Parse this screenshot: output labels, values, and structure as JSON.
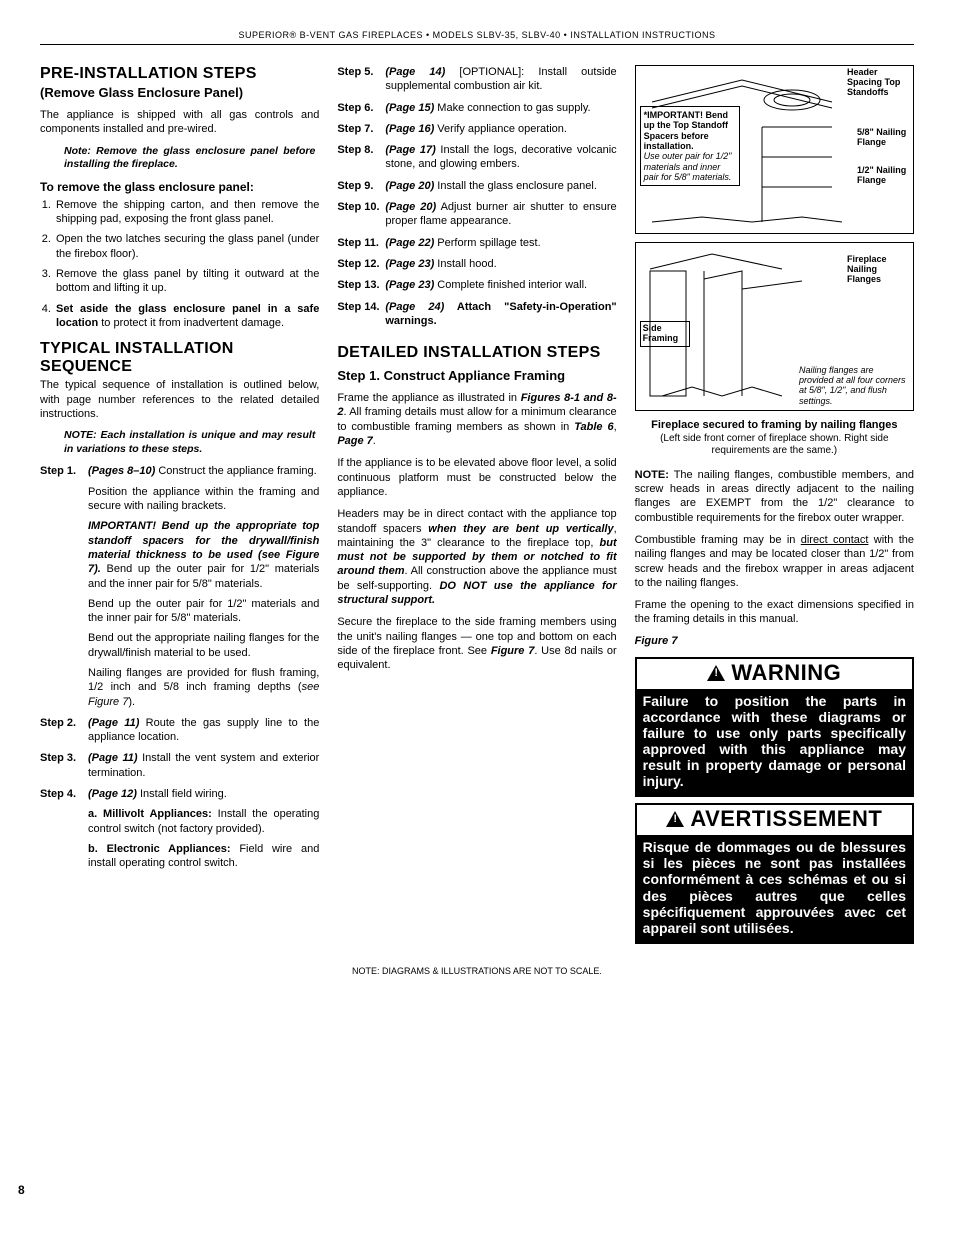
{
  "header": "SUPERIOR® B-VENT GAS FIREPLACES  •  MODELS SLBV-35, SLBV-40  •  INSTALLATION INSTRUCTIONS",
  "page_number": "8",
  "footer_note": "NOTE: DIAGRAMS & ILLUSTRATIONS ARE NOT TO SCALE.",
  "col1": {
    "h1": "PRE-INSTALLATION STEPS",
    "h1_sub": "(Remove Glass Enclosure Panel)",
    "p1": "The appliance is shipped with all gas controls and components installed and pre-wired.",
    "note1": "Note: Remove the glass enclosure panel before installing the fireplace.",
    "subhead1": "To remove the glass enclosure panel:",
    "list1": [
      "Remove the shipping carton, and then remove the shipping pad, exposing the front glass panel.",
      "Open the two latches securing the glass panel (under the firebox floor).",
      "Remove the glass panel by tilting it outward at the bottom and lifting it up."
    ],
    "list1_item4_pre": "Set aside the glass enclosure panel in a safe location",
    "list1_item4_post": " to protect it from inadvertent damage.",
    "h2": "TYPICAL INSTALLATION SEQUENCE",
    "p2": "The typical sequence of installation is outlined below, with page number references to the related detailed instructions.",
    "note2": "NOTE: Each installation is unique and may result in variations to these steps.",
    "step1": {
      "label": "Step 1.",
      "pageref": "(Pages 8–10)",
      "tail": " Construct the appliance framing.",
      "p1": "Position the appliance within the framing and secure with nailing brackets.",
      "imp_pre": "IMPORTANT! Bend up the appropriate top standoff spacers for the drywall/finish material thickness to be used (see Figure 7).",
      "imp_post": " Bend up the outer pair for 1/2\" materials and the inner pair for 5/8\" materials.",
      "p3": "Bend up the outer pair for 1/2\" materials and the inner pair for 5/8\" materials.",
      "p4": "Bend out the appropriate nailing flanges for the drywall/finish material to be used.",
      "p5_pre": "Nailing flanges are provided for flush framing, 1/2 inch and 5/8 inch framing depths (",
      "p5_ref": "see Figure 7",
      "p5_post": ")."
    },
    "step2": {
      "label": "Step 2.",
      "pageref": "(Page 11)",
      "tail": " Route the gas supply line to the appliance location."
    },
    "step3": {
      "label": "Step 3.",
      "pageref": "(Page 11)",
      "tail": " Install the vent system and exterior termination."
    },
    "step4": {
      "label": "Step 4.",
      "pageref": "(Page 12)",
      "tail": " Install field wiring.",
      "a_b": "a. Millivolt Appliances:",
      "a_t": " Install the operating control switch (not factory provided).",
      "b_b": "b. Electronic Appliances:",
      "b_t": " Field wire and install operating control switch."
    }
  },
  "col2": {
    "steps": [
      {
        "label": "Step 5.",
        "pageref": "(Page 14)",
        "tail": " [OPTIONAL]: Install outside supplemental combustion air kit."
      },
      {
        "label": "Step 6.",
        "pageref": "(Page 15)",
        "tail": " Make connection to gas supply."
      },
      {
        "label": "Step 7.",
        "pageref": "(Page 16)",
        "tail": " Verify appliance operation."
      },
      {
        "label": "Step 8.",
        "pageref": "(Page 17)",
        "tail": " Install the logs, decorative volcanic stone, and glowing embers."
      },
      {
        "label": "Step 9.",
        "pageref": "(Page 20)",
        "tail": " Install the glass enclosure panel."
      },
      {
        "label": "Step 10.",
        "pageref": "(Page 20)",
        "tail": " Adjust burner air shutter to ensure proper flame appearance."
      },
      {
        "label": "Step 11.",
        "pageref": "(Page 22)",
        "tail": " Perform spillage test."
      },
      {
        "label": "Step 12.",
        "pageref": "(Page 23)",
        "tail": " Install hood."
      },
      {
        "label": "Step 13.",
        "pageref": "(Page 23)",
        "tail": " Complete finished interior wall."
      }
    ],
    "step14": {
      "label": "Step 14.",
      "pageref": "(Page 24)",
      "tail": " Attach \"Safety-in-Operation\" warnings."
    },
    "h1": "DETAILED INSTALLATION STEPS",
    "h2": "Step 1. Construct Appliance Framing",
    "p1_pre": "Frame the appliance as illustrated in ",
    "p1_ref1": "Figures 8-1 and 8-2",
    "p1_mid": ". All framing details must allow for a minimum clearance to combustible framing members as shown in ",
    "p1_ref2": "Table 6",
    "p1_mid2": ", ",
    "p1_ref3": "Page 7",
    "p1_end": ".",
    "p2": "If the appliance is to be elevated above floor level, a solid continuous platform must be constructed below the appliance.",
    "p3_pre": "Headers may be in direct contact with the appliance top standoff spacers ",
    "p3_b1": "when they are bent up vertically",
    "p3_mid": ", maintaining the 3\" clearance to the fireplace top, ",
    "p3_b2": "but must not be supported by them or notched to fit around them",
    "p3_mid2": ". All construction above the appliance must be self-supporting. ",
    "p3_b3": "DO NOT use the appliance for structural support.",
    "p4_pre": "Secure the fireplace to the side framing members using the unit's nailing flanges — one top and bottom on each side of the fireplace front. See ",
    "p4_ref": "Figure 7",
    "p4_end": ". Use 8d nails or equivalent."
  },
  "col3": {
    "diag1": {
      "lbl1": "Header Spacing Top Standoffs",
      "lbl2": "5/8\" Nailing Flange",
      "lbl3": "1/2\" Nailing Flange",
      "imp_b": "*IMPORTANT! Bend up the Top Standoff Spacers before installation.",
      "imp_i": "Use outer pair for 1/2\" materials and inner pair for 5/8\" materials."
    },
    "diag2": {
      "lbl1": "Fireplace Nailing Flanges",
      "lbl2": "Side Framing",
      "note": "Nailing flanges are provided at all four corners at 5/8\", 1/2\", and flush settings."
    },
    "caption_b": "Fireplace secured to framing by nailing flanges",
    "caption_p": "(Left side front corner of fireplace shown. Right side requirements are the same.)",
    "note1_b": "NOTE:",
    "note1": " The nailing flanges, combustible members, and screw heads in areas directly adjacent to the nailing flanges are EXEMPT from the 1/2\" clearance to combustible requirements for the firebox outer wrapper.",
    "note2_pre": "Combustible framing may be in ",
    "note2_u": "direct contact",
    "note2_post": " with the nailing flanges and may be located closer than 1/2\" from screw heads and the firebox wrapper in areas adjacent to the nailing flanges.",
    "note3": "Frame the opening to the exact dimensions specified in the framing details in this manual.",
    "figref": "Figure 7",
    "warn1_h": "WARNING",
    "warn1_b": "Failure to position the parts in accordance with these diagrams or failure to use only parts specifically approved with this appliance may result in property damage or personal injury.",
    "warn2_h": "AVERTISSEMENT",
    "warn2_b": "Risque de dommages ou de blessures si les pièces ne sont pas installées conformément à ces schémas et ou si des pièces autres que celles spécifiquement approuvées avec cet appareil sont utilisées."
  }
}
